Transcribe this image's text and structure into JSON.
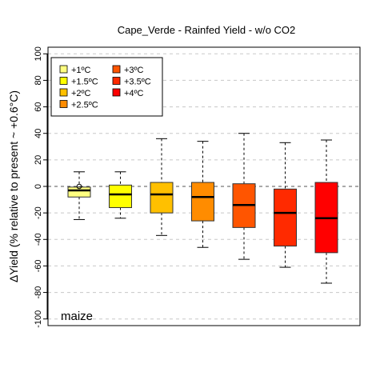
{
  "chart_data": {
    "type": "box",
    "title": "Cape_Verde - Rainfed Yield - w/o CO2",
    "ylabel": "ΔYield (% relative to present ~ +0.6°C)",
    "xlabel": "",
    "ylim": [
      -105,
      105
    ],
    "yticks": [
      -100,
      -80,
      -60,
      -40,
      -20,
      0,
      20,
      40,
      60,
      80,
      100
    ],
    "ytick_labels": [
      "-100",
      "-80",
      "-60",
      "-40",
      "-20",
      "0",
      "20",
      "40",
      "60",
      "80",
      "100"
    ],
    "grid": "horizontal-dashed",
    "zero_line": true,
    "legend_position": "top-left",
    "annotation": "maize",
    "series": [
      {
        "name": "+1ºC",
        "color": "#FFFF80",
        "whisker_low": -25,
        "q1": -8,
        "median": -3,
        "q3": -0.5,
        "whisker_high": 11,
        "points": [
          0
        ]
      },
      {
        "name": "+1.5ºC",
        "color": "#FFFF00",
        "whisker_low": -24,
        "q1": -16,
        "median": -6,
        "q3": 1,
        "whisker_high": 11,
        "points": []
      },
      {
        "name": "+2ºC",
        "color": "#FFC000",
        "whisker_low": -37,
        "q1": -20,
        "median": -6,
        "q3": 3,
        "whisker_high": 36,
        "points": []
      },
      {
        "name": "+2.5ºC",
        "color": "#FF8C00",
        "whisker_low": -46,
        "q1": -26,
        "median": -8,
        "q3": 3,
        "whisker_high": 34,
        "points": []
      },
      {
        "name": "+3ºC",
        "color": "#FF5500",
        "whisker_low": -55,
        "q1": -31,
        "median": -14,
        "q3": 2,
        "whisker_high": 40,
        "points": []
      },
      {
        "name": "+3.5ºC",
        "color": "#FF2A00",
        "whisker_low": -61,
        "q1": -45,
        "median": -20,
        "q3": -2,
        "whisker_high": 33,
        "points": []
      },
      {
        "name": "+4ºC",
        "color": "#FF0000",
        "whisker_low": -73,
        "q1": -50,
        "median": -24,
        "q3": 3,
        "whisker_high": 35,
        "points": []
      }
    ]
  }
}
